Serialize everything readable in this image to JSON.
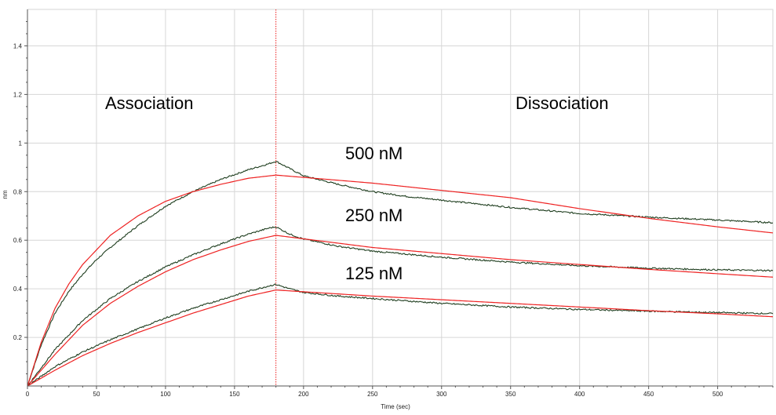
{
  "chart_data": {
    "type": "line",
    "title": "",
    "xlabel": "Time (sec)",
    "ylabel": "nm",
    "xlim": [
      0,
      540
    ],
    "ylim": [
      0,
      1.55
    ],
    "x_ticks": [
      0,
      50,
      100,
      150,
      200,
      250,
      300,
      350,
      400,
      450,
      500
    ],
    "y_ticks": [
      0.2,
      0.4,
      0.6,
      0.8,
      1,
      1.2,
      1.4
    ],
    "grid": true,
    "phase_boundary_x": 180,
    "annotations": {
      "association": "Association",
      "dissociation": "Dissociation",
      "c500": "500 nM",
      "c250": "250 nM",
      "c125": "125 nM"
    },
    "colors": {
      "measured": "#1e3d1e",
      "fit": "#ee2222",
      "boundary": "#ee2222",
      "grid": "#d6d6d6",
      "axis": "#555555"
    },
    "series": [
      {
        "name": "500 nM",
        "measured": {
          "x": [
            0,
            10,
            20,
            30,
            40,
            50,
            60,
            80,
            100,
            120,
            140,
            160,
            175,
            180,
            190,
            200,
            225,
            250,
            275,
            300,
            350,
            400,
            450,
            500,
            540
          ],
          "y": [
            0.0,
            0.17,
            0.3,
            0.39,
            0.46,
            0.52,
            0.57,
            0.66,
            0.74,
            0.8,
            0.85,
            0.89,
            0.915,
            0.925,
            0.895,
            0.865,
            0.83,
            0.8,
            0.78,
            0.765,
            0.735,
            0.71,
            0.695,
            0.683,
            0.672
          ]
        },
        "fit": {
          "x": [
            0,
            10,
            20,
            30,
            40,
            50,
            60,
            80,
            100,
            120,
            140,
            160,
            180,
            250,
            300,
            350,
            400,
            450,
            500,
            540
          ],
          "y": [
            0.0,
            0.18,
            0.32,
            0.42,
            0.5,
            0.56,
            0.62,
            0.7,
            0.76,
            0.8,
            0.83,
            0.855,
            0.868,
            0.835,
            0.805,
            0.775,
            0.73,
            0.69,
            0.655,
            0.63
          ]
        }
      },
      {
        "name": "250 nM",
        "measured": {
          "x": [
            0,
            20,
            40,
            60,
            80,
            100,
            120,
            140,
            160,
            175,
            180,
            190,
            200,
            225,
            250,
            300,
            350,
            400,
            450,
            500,
            540
          ],
          "y": [
            0.0,
            0.15,
            0.27,
            0.36,
            0.43,
            0.49,
            0.54,
            0.585,
            0.625,
            0.65,
            0.655,
            0.625,
            0.605,
            0.575,
            0.555,
            0.53,
            0.51,
            0.495,
            0.485,
            0.478,
            0.475
          ]
        },
        "fit": {
          "x": [
            0,
            20,
            40,
            60,
            80,
            100,
            120,
            140,
            160,
            180,
            250,
            300,
            350,
            400,
            450,
            500,
            540
          ],
          "y": [
            0.0,
            0.13,
            0.25,
            0.34,
            0.41,
            0.47,
            0.52,
            0.56,
            0.595,
            0.62,
            0.57,
            0.545,
            0.52,
            0.5,
            0.48,
            0.462,
            0.448
          ]
        }
      },
      {
        "name": "125 nM",
        "measured": {
          "x": [
            0,
            20,
            40,
            60,
            80,
            100,
            120,
            140,
            160,
            175,
            180,
            190,
            200,
            225,
            250,
            300,
            350,
            400,
            450,
            500,
            540
          ],
          "y": [
            0.0,
            0.08,
            0.14,
            0.19,
            0.235,
            0.28,
            0.32,
            0.355,
            0.39,
            0.412,
            0.418,
            0.4,
            0.385,
            0.37,
            0.36,
            0.34,
            0.325,
            0.315,
            0.308,
            0.302,
            0.298
          ]
        },
        "fit": {
          "x": [
            0,
            20,
            40,
            60,
            80,
            100,
            120,
            140,
            160,
            180,
            250,
            300,
            350,
            400,
            450,
            500,
            540
          ],
          "y": [
            0.0,
            0.065,
            0.125,
            0.175,
            0.22,
            0.26,
            0.3,
            0.335,
            0.37,
            0.395,
            0.37,
            0.355,
            0.34,
            0.325,
            0.31,
            0.297,
            0.285
          ]
        }
      }
    ]
  }
}
